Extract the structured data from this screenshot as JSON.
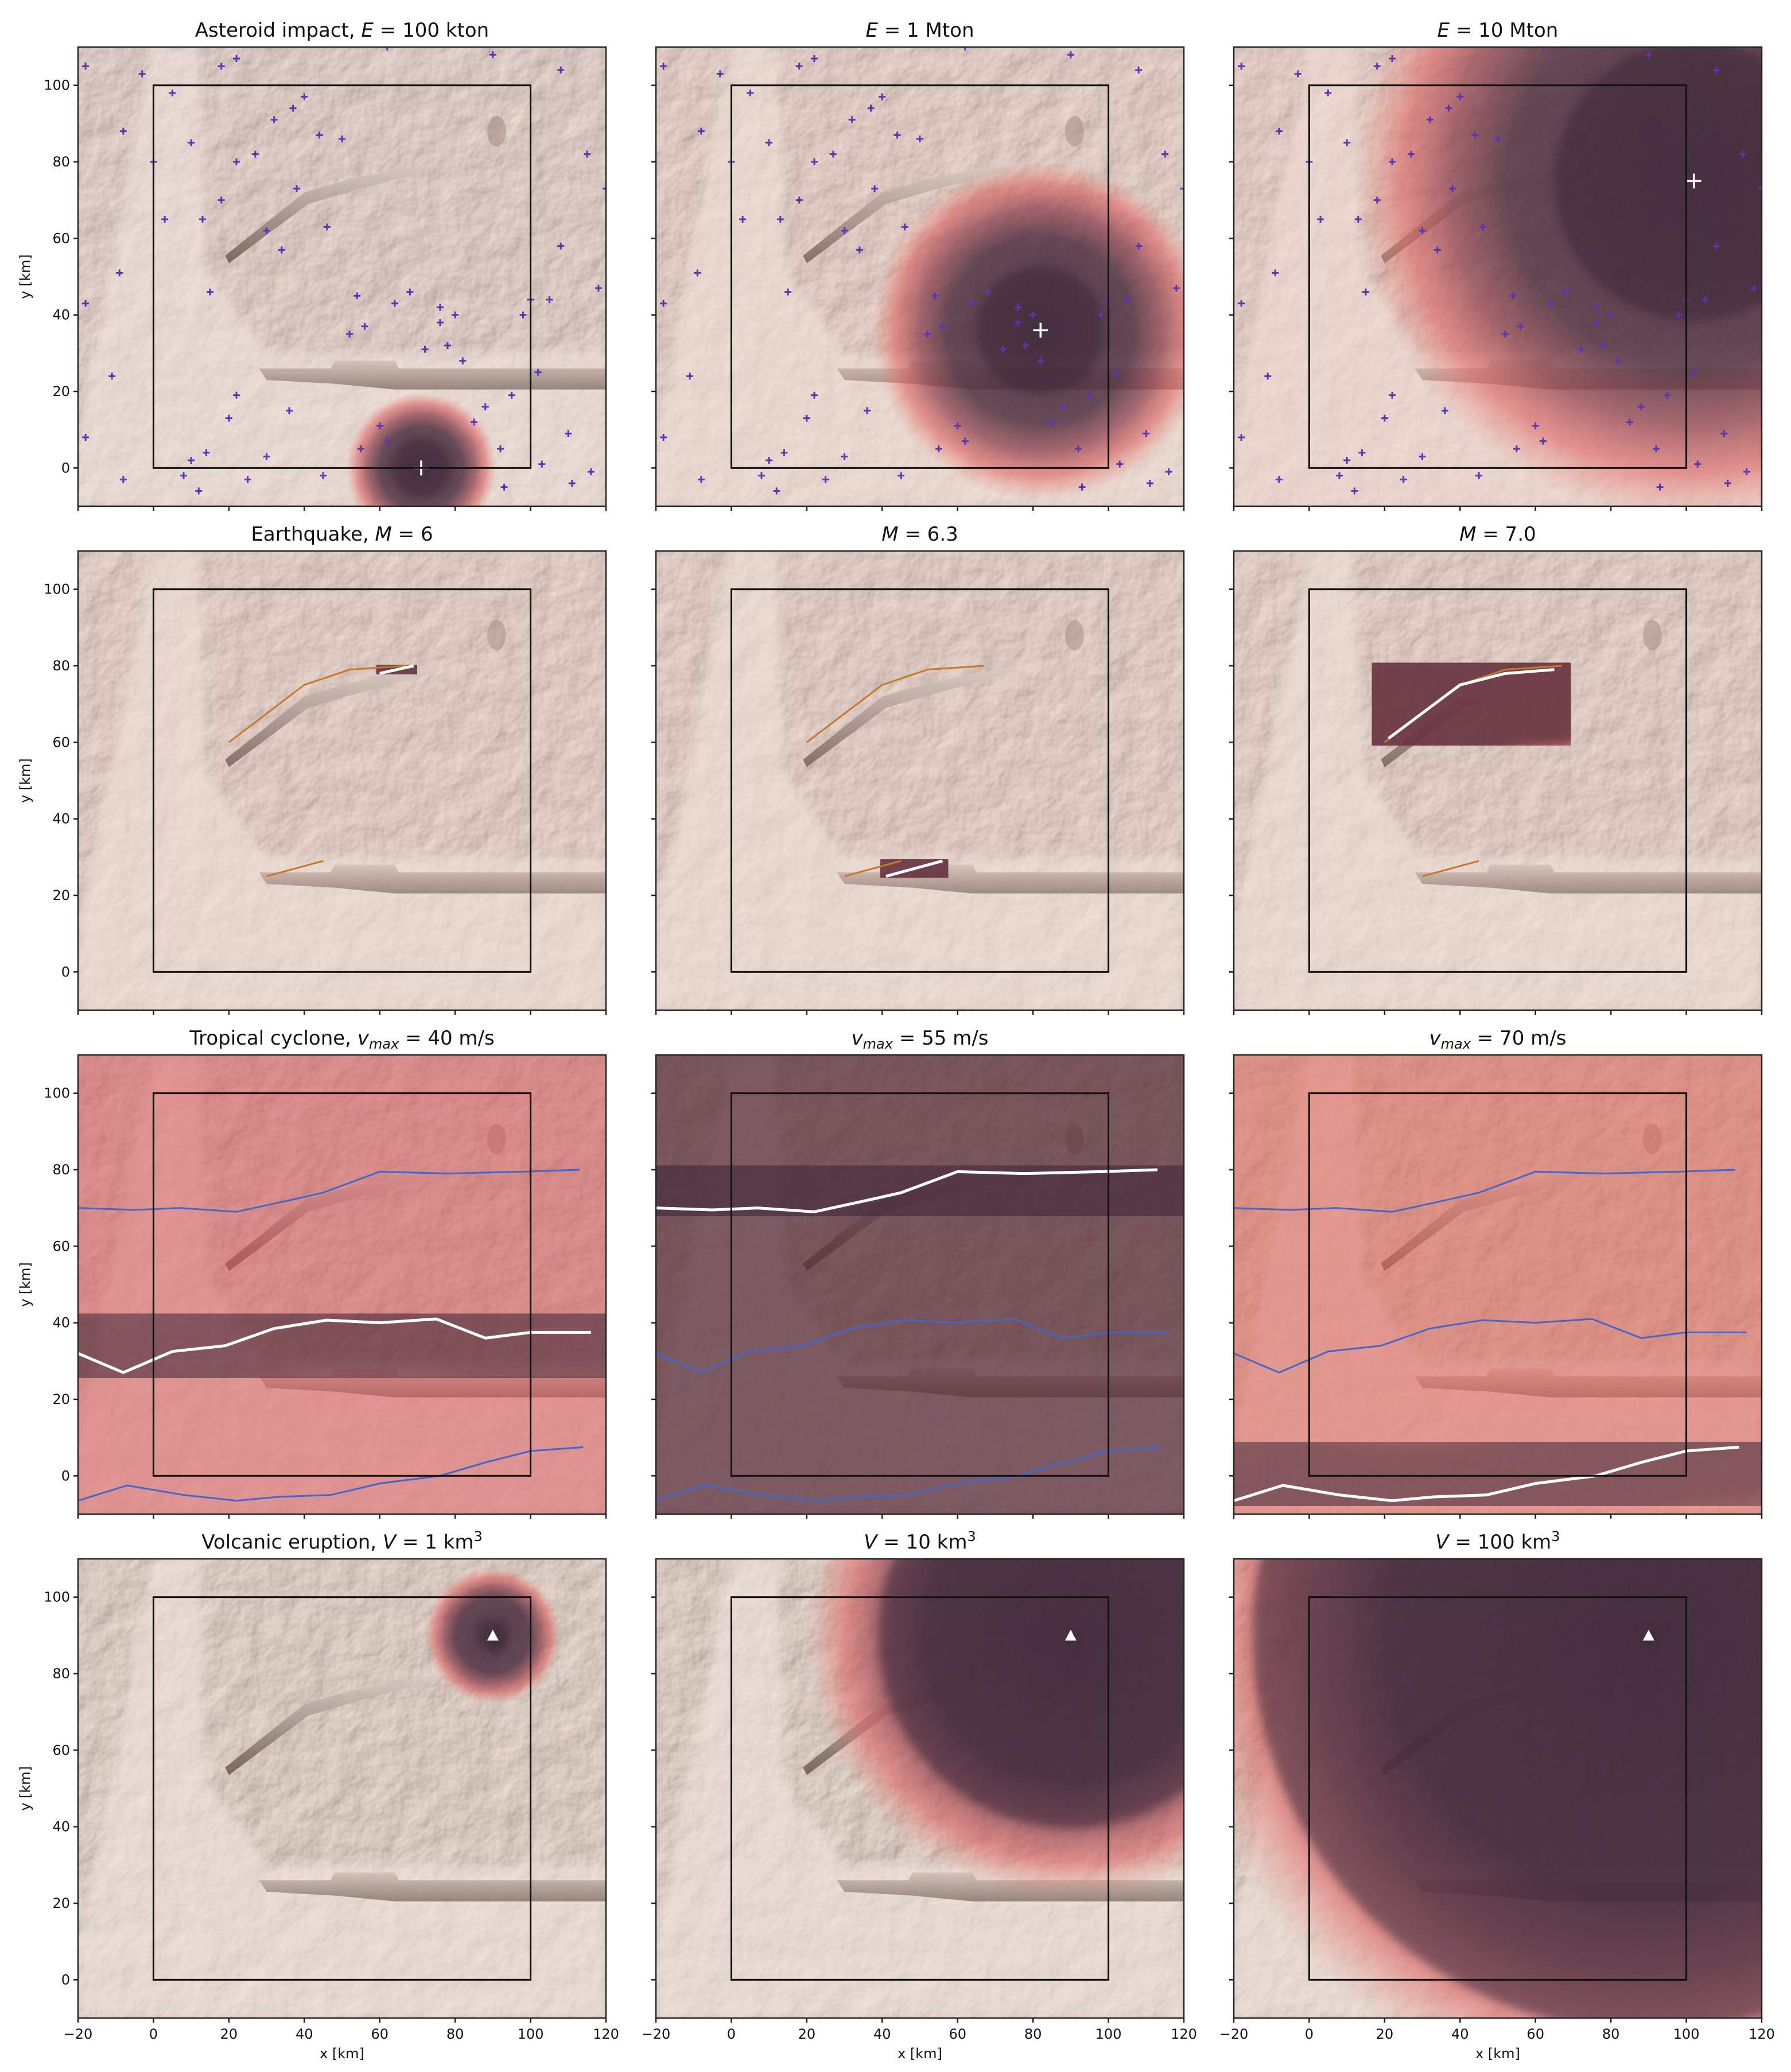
{
  "figure": {
    "rows": [
      {
        "hazard": "asteroid",
        "labels": [
          "Asteroid impact, ",
          "",
          ""
        ],
        "symbols": [
          "E",
          "E",
          "E"
        ],
        "values": [
          " = 100 kton",
          " = 1 Mton",
          " = 10 Mton"
        ]
      },
      {
        "hazard": "earthquake",
        "labels": [
          "Earthquake, ",
          "",
          ""
        ],
        "symbols": [
          "M",
          "M",
          "M"
        ],
        "values": [
          " = 6",
          " = 6.3",
          " = 7.0"
        ]
      },
      {
        "hazard": "cyclone",
        "labels": [
          "Tropical cyclone, ",
          "",
          ""
        ],
        "symbols": [
          "v",
          "v",
          "v"
        ],
        "subs": [
          "max",
          "max",
          "max"
        ],
        "values": [
          " = 40 m/s",
          " = 55 m/s",
          " = 70 m/s"
        ]
      },
      {
        "hazard": "volcano",
        "labels": [
          "Volcanic eruption, ",
          "",
          ""
        ],
        "symbols": [
          "V",
          "V",
          "V"
        ],
        "values": [
          " = 1 km",
          " = 10 km",
          " = 100 km"
        ],
        "sups": [
          "3",
          "3",
          "3"
        ]
      }
    ],
    "xlabel": "x [km]",
    "ylabel": "y [km]",
    "colors": {
      "hazard": "#c83c3c",
      "hazard_dark": "#4a2a3a",
      "terrain": "#e6dad2",
      "candidate": "#5a36b4",
      "fault": "#c8782d",
      "track": "#4466cc",
      "selected": "#ffffff",
      "box": "#111111"
    }
  },
  "chart_data": {
    "type": "map-grid",
    "xlim": [
      -20,
      120
    ],
    "ylim": [
      -10,
      110
    ],
    "xticks": [
      -20,
      0,
      20,
      40,
      60,
      80,
      100,
      120
    ],
    "yticks": [
      0,
      20,
      40,
      60,
      80,
      100
    ],
    "study_area": {
      "x": [
        0,
        100
      ],
      "y": [
        0,
        100
      ]
    },
    "asteroid_candidates": [
      [
        -18,
        105
      ],
      [
        -8,
        88
      ],
      [
        -18,
        43
      ],
      [
        -9,
        51
      ],
      [
        -11,
        24
      ],
      [
        -18,
        8
      ],
      [
        -8,
        -3
      ],
      [
        8,
        -2
      ],
      [
        10,
        2
      ],
      [
        12,
        -6
      ],
      [
        14,
        4
      ],
      [
        22,
        19
      ],
      [
        20,
        13
      ],
      [
        25,
        -3
      ],
      [
        18,
        105
      ],
      [
        22,
        107
      ],
      [
        10,
        85
      ],
      [
        13,
        65
      ],
      [
        18,
        70
      ],
      [
        22,
        80
      ],
      [
        27,
        82
      ],
      [
        30,
        62
      ],
      [
        34,
        57
      ],
      [
        32,
        91
      ],
      [
        37,
        94
      ],
      [
        38,
        73
      ],
      [
        44,
        87
      ],
      [
        50,
        86
      ],
      [
        46,
        63
      ],
      [
        52,
        35
      ],
      [
        54,
        45
      ],
      [
        56,
        37
      ],
      [
        60,
        11
      ],
      [
        62,
        7
      ],
      [
        68,
        46
      ],
      [
        76,
        38
      ],
      [
        76,
        42
      ],
      [
        78,
        32
      ],
      [
        80,
        40
      ],
      [
        82,
        28
      ],
      [
        85,
        12
      ],
      [
        92,
        5
      ],
      [
        93,
        -5
      ],
      [
        95,
        19
      ],
      [
        98,
        40
      ],
      [
        100,
        44
      ],
      [
        102,
        25
      ],
      [
        103,
        1
      ],
      [
        105,
        44
      ],
      [
        108,
        58
      ],
      [
        110,
        9
      ],
      [
        111,
        -4
      ],
      [
        115,
        82
      ],
      [
        116,
        -1
      ],
      [
        118,
        47
      ],
      [
        120,
        73
      ],
      [
        -3,
        103
      ],
      [
        5,
        98
      ],
      [
        0,
        80
      ],
      [
        3,
        65
      ],
      [
        40,
        97
      ],
      [
        62,
        110
      ],
      [
        90,
        108
      ],
      [
        108,
        104
      ],
      [
        64,
        43
      ],
      [
        72,
        31
      ],
      [
        88,
        16
      ],
      [
        36,
        15
      ],
      [
        30,
        3
      ],
      [
        45,
        -2
      ],
      [
        55,
        5
      ],
      [
        15,
        46
      ]
    ],
    "asteroid_impacts": [
      {
        "panel": 0,
        "x": 71,
        "y": 0
      },
      {
        "panel": 1,
        "x": 82,
        "y": 36
      },
      {
        "panel": 2,
        "x": 102,
        "y": 75
      }
    ],
    "faults": [
      [
        [
          20,
          60
        ],
        [
          40,
          75
        ],
        [
          52,
          79
        ],
        [
          67,
          80
        ]
      ],
      [
        [
          30,
          25
        ],
        [
          45,
          29
        ]
      ]
    ],
    "earthquake_ruptures": [
      {
        "panel": 0,
        "points": [
          [
            60,
            78
          ],
          [
            69,
            80
          ]
        ]
      },
      {
        "panel": 1,
        "points": [
          [
            41,
            25
          ],
          [
            56,
            29
          ]
        ]
      },
      {
        "panel": 2,
        "points": [
          [
            21,
            61
          ],
          [
            40,
            75
          ],
          [
            52,
            78
          ],
          [
            65,
            79
          ]
        ]
      }
    ],
    "cyclone_tracks": [
      [
        [
          -20,
          70
        ],
        [
          -5,
          69.5
        ],
        [
          7,
          70
        ],
        [
          22,
          69
        ],
        [
          36,
          72
        ],
        [
          45,
          74
        ],
        [
          60,
          79.5
        ],
        [
          78,
          79
        ],
        [
          98,
          79.5
        ],
        [
          113,
          80
        ]
      ],
      [
        [
          -20,
          32
        ],
        [
          -8,
          27
        ],
        [
          5,
          32.5
        ],
        [
          19,
          34
        ],
        [
          32,
          38.5
        ],
        [
          46,
          40.7
        ],
        [
          60,
          40
        ],
        [
          75,
          41
        ],
        [
          88,
          36
        ],
        [
          100,
          37.5
        ],
        [
          116,
          37.5
        ]
      ],
      [
        [
          -20,
          -6.5
        ],
        [
          -7,
          -2.5
        ],
        [
          8,
          -5
        ],
        [
          22,
          -6.5
        ],
        [
          33,
          -5.5
        ],
        [
          47,
          -5
        ],
        [
          60,
          -2
        ],
        [
          76,
          0
        ],
        [
          88,
          3.5
        ],
        [
          100,
          6.5
        ],
        [
          114,
          7.5
        ]
      ]
    ],
    "cyclone_selected_track": [
      1,
      0,
      2
    ],
    "volcano_vent": {
      "x": 90,
      "y": 90
    },
    "footprints": [
      {
        "hazard": "asteroid",
        "level": "100 kton",
        "center": [
          71,
          0
        ],
        "radius": 8,
        "halo": 20
      },
      {
        "hazard": "asteroid",
        "level": "1 Mton",
        "center": [
          82,
          36
        ],
        "radius": 17,
        "halo": 45
      },
      {
        "hazard": "asteroid",
        "level": "10 Mton",
        "center": [
          102,
          75
        ],
        "radius": 37,
        "halo": 90
      },
      {
        "hazard": "volcano",
        "level": "1 km3",
        "center": [
          90,
          90
        ],
        "radius": 4,
        "halo": 18
      },
      {
        "hazard": "volcano",
        "level": "10 km3",
        "center": [
          90,
          90
        ],
        "radius": 51,
        "halo": 70
      },
      {
        "hazard": "volcano",
        "level": "100 km3",
        "center": [
          90,
          90
        ],
        "radius": 105,
        "halo": 125
      }
    ]
  }
}
